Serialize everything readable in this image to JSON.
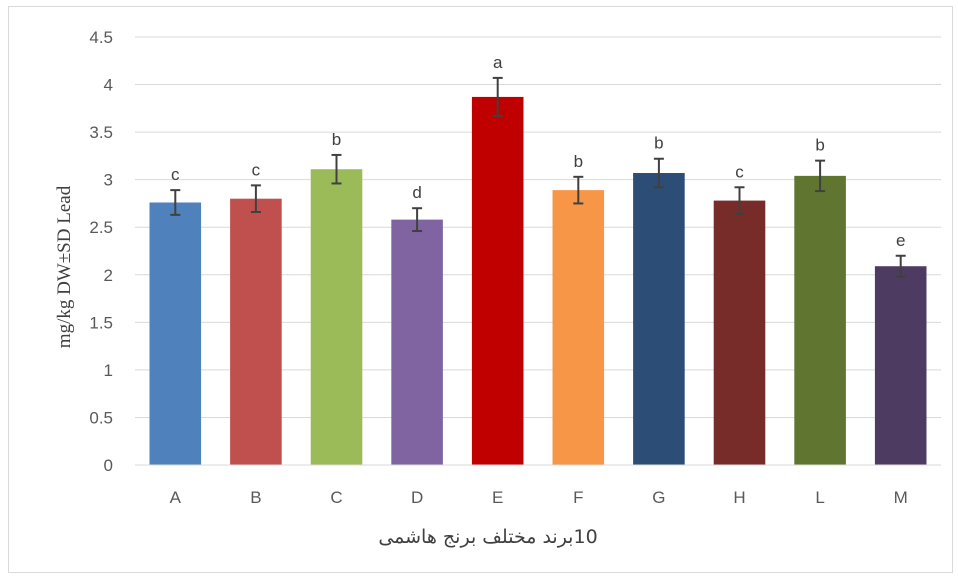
{
  "chart_data": {
    "type": "bar",
    "categories": [
      "A",
      "B",
      "C",
      "D",
      "E",
      "F",
      "G",
      "H",
      "L",
      "M"
    ],
    "values": [
      2.76,
      2.8,
      3.11,
      2.58,
      3.87,
      2.89,
      3.07,
      2.78,
      3.04,
      2.09
    ],
    "errors": [
      0.13,
      0.14,
      0.15,
      0.12,
      0.2,
      0.14,
      0.15,
      0.14,
      0.16,
      0.11
    ],
    "significance": [
      "c",
      "c",
      "b",
      "d",
      "a",
      "b",
      "b",
      "c",
      "b",
      "e"
    ],
    "colors": [
      "#4f81bd",
      "#c0504d",
      "#9bbb59",
      "#8064a2",
      "#c00000",
      "#f79646",
      "#2c4d75",
      "#772c2a",
      "#5f7530",
      "#4d3b62"
    ],
    "ylim": [
      0,
      4.5
    ],
    "yticks": [
      "0",
      "0.5",
      "1",
      "1.5",
      "2",
      "2.5",
      "3",
      "3.5",
      "4",
      "4.5"
    ],
    "ylabel": "mg/kg DW±SD Lead",
    "xlabel": "10برند مختلف برنج هاشمی",
    "grid": true,
    "legend": "none",
    "gridColor": "#d9d9d9",
    "errorBarColor": "#404040"
  }
}
